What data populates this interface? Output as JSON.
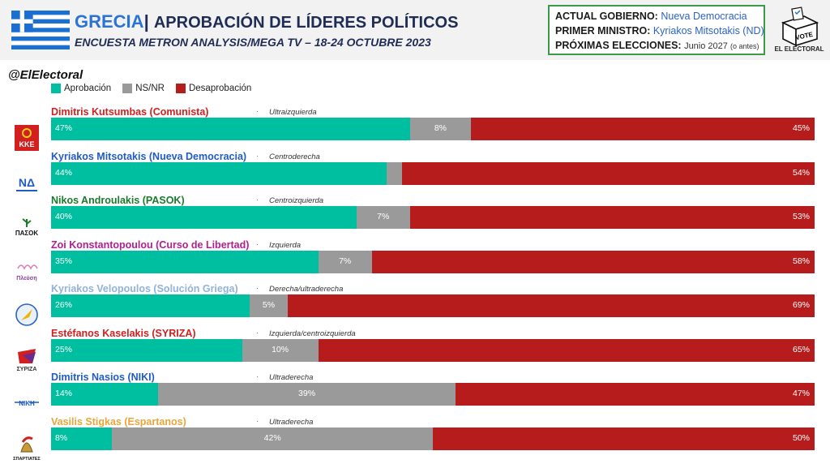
{
  "header": {
    "country": "GRECIA",
    "separator": "|",
    "title": "APROBACIÓN DE LÍDERES POLÍTICOS",
    "subtitle": "ENCUESTA METRON ANALYSIS/MEGA TV – 18-24 OCTUBRE 2023"
  },
  "info": {
    "government_key": "ACTUAL GOBIERNO:",
    "government_value": "Nueva Democracia",
    "pm_key": "PRIMER MINISTRO:",
    "pm_value": "Kyriakos Mitsotakis (ND)",
    "elections_key": "PRÓXIMAS ELECCIONES:",
    "elections_value": "Junio 2027",
    "elections_note": "(o antes)"
  },
  "brand": {
    "vote_text": "VOTE",
    "name": "EL ELECTORAL",
    "handle": "@ElElectoral"
  },
  "colors": {
    "approval": "#00bfa0",
    "unknown": "#9a9a9a",
    "disapproval": "#b71c1c",
    "flag_blue": "#1b6fd1"
  },
  "chart_data": {
    "type": "bar",
    "orientation": "horizontal",
    "stacked": true,
    "legend": [
      "Aprobación",
      "NS/NR",
      "Desaprobación"
    ],
    "legend_position": "top-left",
    "xlim": [
      0,
      100
    ],
    "rows": [
      {
        "leader": "Dimitris Kutsumbas (Comunista)",
        "name_color": "#d21f1f",
        "ideology": "Ultraizquierda",
        "logo_text": "KKE",
        "logo_icon": "kke-logo-icon",
        "approval": 47,
        "unknown": 8,
        "disapproval": 45,
        "labels": [
          "47%",
          "8%",
          "45%"
        ]
      },
      {
        "leader": "Kyriakos Mitsotakis (Nueva Democracia)",
        "name_color": "#1f5cc4",
        "ideology": "Centroderecha",
        "logo_text": "ΝΔ",
        "logo_icon": "nd-logo-icon",
        "approval": 44,
        "unknown": 2,
        "disapproval": 54,
        "labels": [
          "44%",
          "",
          "54%"
        ]
      },
      {
        "leader": "Nikos Androulakis (PASOK)",
        "name_color": "#1b7a2e",
        "ideology": "Centroizquierda",
        "logo_text": "ΠΑΣΟΚ",
        "logo_icon": "pasok-logo-icon",
        "approval": 40,
        "unknown": 7,
        "disapproval": 53,
        "labels": [
          "40%",
          "7%",
          "53%"
        ]
      },
      {
        "leader": "Zoi Konstantopoulou (Curso de Libertad)",
        "name_color": "#b0208f",
        "ideology": "Izquierda",
        "logo_text": "Πλεύση",
        "logo_icon": "plefsi-logo-icon",
        "approval": 35,
        "unknown": 7,
        "disapproval": 58,
        "labels": [
          "35%",
          "7%",
          "58%"
        ]
      },
      {
        "leader": "Kyriakos Velopoulos (Solución Griega)",
        "name_color": "#8fb3d9",
        "ideology": "Derecha/ultraderecha",
        "logo_text": "",
        "logo_icon": "elliniki-lysi-logo-icon",
        "approval": 26,
        "unknown": 5,
        "disapproval": 69,
        "labels": [
          "26%",
          "5%",
          "69%"
        ]
      },
      {
        "leader": "Estéfanos Kaselakis (SYRIZA)",
        "name_color": "#d21f1f",
        "ideology": "Izquierda/centroizquierda",
        "logo_text": "ΣΥΡΙΖΑ",
        "logo_icon": "syriza-logo-icon",
        "approval": 25,
        "unknown": 10,
        "disapproval": 65,
        "labels": [
          "25%",
          "10%",
          "65%"
        ]
      },
      {
        "leader": "Dimitris Nasios (NIKI)",
        "name_color": "#1f5cc4",
        "ideology": "Ultraderecha",
        "logo_text": "ΝΙΚΗ",
        "logo_icon": "niki-logo-icon",
        "approval": 14,
        "unknown": 39,
        "disapproval": 47,
        "labels": [
          "14%",
          "39%",
          "47%"
        ]
      },
      {
        "leader": "Vasilis Stigkas (Espartanos)",
        "name_color": "#e8a63a",
        "ideology": "Ultraderecha",
        "logo_text": "ΣΠΑΡΤΙΑΤΕΣ",
        "logo_icon": "spartiates-logo-icon",
        "approval": 8,
        "unknown": 42,
        "disapproval": 50,
        "labels": [
          "8%",
          "42%",
          "50%"
        ]
      }
    ]
  }
}
